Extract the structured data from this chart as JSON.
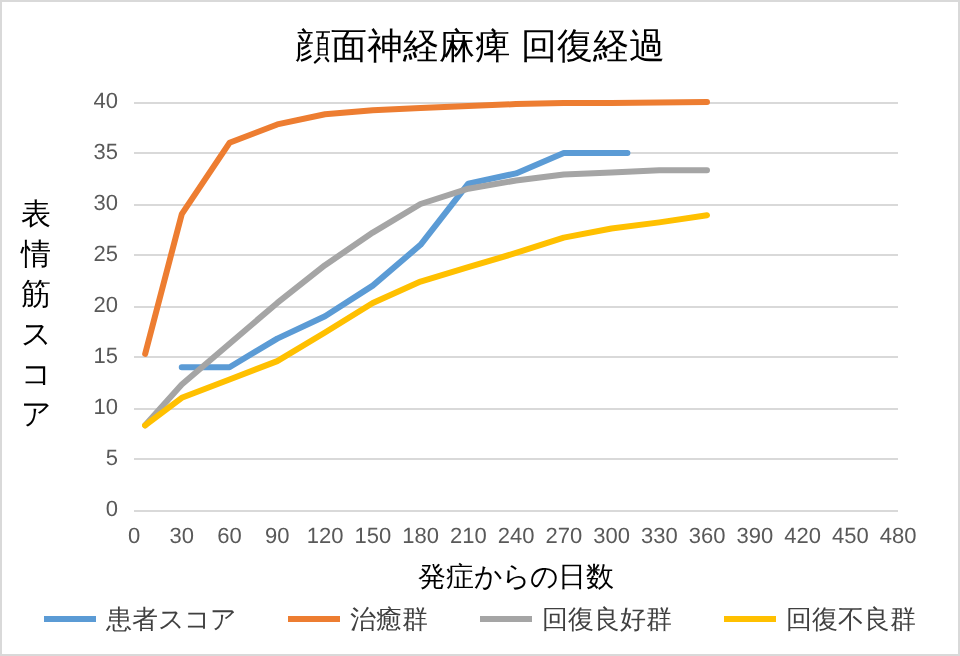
{
  "chart_data": {
    "type": "line",
    "title": "顔面神経麻痺 回復経過",
    "xlabel": "発症からの日数",
    "ylabel": "表情筋スコア",
    "xlim": [
      0,
      480
    ],
    "xticks": [
      0,
      30,
      60,
      90,
      120,
      150,
      180,
      210,
      240,
      270,
      300,
      330,
      360,
      390,
      420,
      450,
      480
    ],
    "ylim": [
      0,
      40
    ],
    "yticks": [
      0,
      5,
      10,
      15,
      20,
      25,
      30,
      35,
      40
    ],
    "grid": "y",
    "legend": "bottom",
    "marker": "none",
    "line_style": "solid",
    "series": [
      {
        "name": "患者スコア",
        "color": "#5b9bd5",
        "x": [
          30,
          60,
          90,
          120,
          150,
          180,
          210,
          240,
          270,
          310
        ],
        "values": [
          14,
          14,
          16.8,
          19,
          22,
          26,
          32,
          33,
          35,
          35
        ]
      },
      {
        "name": "治癒群",
        "color": "#ed7d31",
        "x": [
          7,
          30,
          60,
          90,
          120,
          150,
          180,
          210,
          240,
          270,
          300,
          360
        ],
        "values": [
          15.3,
          29,
          36,
          37.8,
          38.8,
          39.2,
          39.4,
          39.6,
          39.8,
          39.9,
          39.9,
          40
        ]
      },
      {
        "name": "回復良好群",
        "color": "#a5a5a5",
        "x": [
          7,
          30,
          60,
          90,
          120,
          150,
          180,
          210,
          240,
          270,
          300,
          330,
          360
        ],
        "values": [
          8.3,
          12.3,
          16.3,
          20.3,
          24,
          27.2,
          30,
          31.5,
          32.3,
          32.9,
          33.1,
          33.3,
          33.3
        ]
      },
      {
        "name": "回復不良群",
        "color": "#ffc000",
        "x": [
          7,
          30,
          60,
          90,
          120,
          150,
          180,
          210,
          240,
          270,
          300,
          330,
          360
        ],
        "values": [
          8.3,
          11,
          12.8,
          14.6,
          17.4,
          20.3,
          22.4,
          23.8,
          25.2,
          26.7,
          27.6,
          28.2,
          28.9
        ]
      }
    ]
  }
}
